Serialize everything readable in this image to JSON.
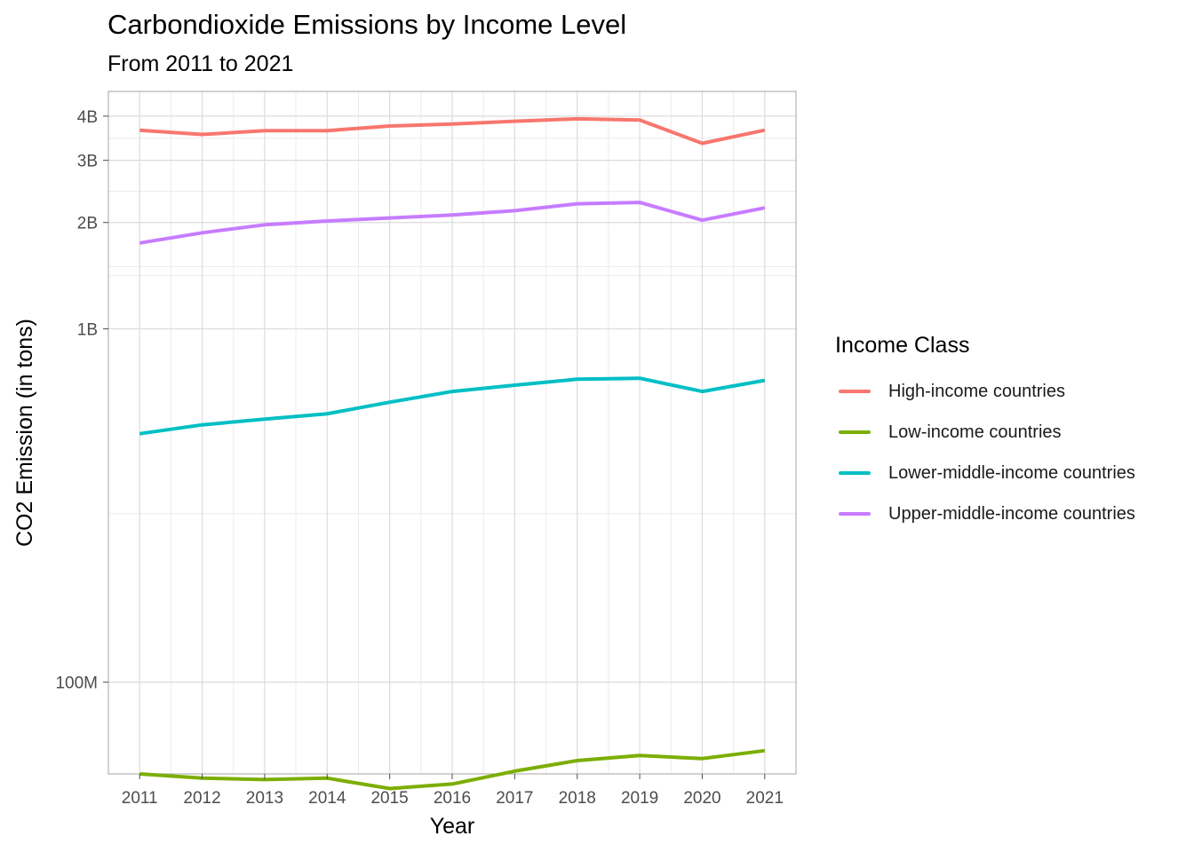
{
  "chart_data": {
    "type": "line",
    "title": "Carbondioxide Emissions by Income Level",
    "subtitle": "From 2011 to 2021",
    "xlabel": "Year",
    "ylabel": "CO2 Emission (in tons)",
    "y_scale": "log10",
    "ylim": [
      55000000,
      4700000000
    ],
    "y_ticks": [
      {
        "value": 100000000,
        "label": "100M"
      },
      {
        "value": 1000000000,
        "label": "1B"
      },
      {
        "value": 2000000000,
        "label": "2B"
      },
      {
        "value": 3000000000,
        "label": "3B"
      },
      {
        "value": 4000000000,
        "label": "4B"
      }
    ],
    "y_minor_gridlines": [
      300000000,
      1500000000
    ],
    "x": [
      2011,
      2012,
      2013,
      2014,
      2015,
      2016,
      2017,
      2018,
      2019,
      2020,
      2021
    ],
    "xlim": [
      2010.5,
      2021.5
    ],
    "grid": true,
    "legend_title": "Income Class",
    "legend_position": "right",
    "series": [
      {
        "name": "High-income countries",
        "color": "#F8766D",
        "values": [
          3650000000,
          3550000000,
          3640000000,
          3640000000,
          3750000000,
          3800000000,
          3870000000,
          3930000000,
          3900000000,
          3350000000,
          3650000000
        ]
      },
      {
        "name": "Low-income countries",
        "color": "#7CAE00",
        "values": [
          55000000,
          53500000,
          53000000,
          53500000,
          50000000,
          51500000,
          56000000,
          60000000,
          62000000,
          60800000,
          64000000
        ]
      },
      {
        "name": "Lower-middle-income countries",
        "color": "#00BFC4",
        "values": [
          505000000,
          535000000,
          555000000,
          575000000,
          620000000,
          665000000,
          693000000,
          720000000,
          725000000,
          665000000,
          715000000
        ]
      },
      {
        "name": "Upper-middle-income countries",
        "color": "#C77CFF",
        "values": [
          1750000000,
          1870000000,
          1970000000,
          2020000000,
          2060000000,
          2100000000,
          2160000000,
          2260000000,
          2280000000,
          2030000000,
          2200000000
        ]
      }
    ]
  }
}
